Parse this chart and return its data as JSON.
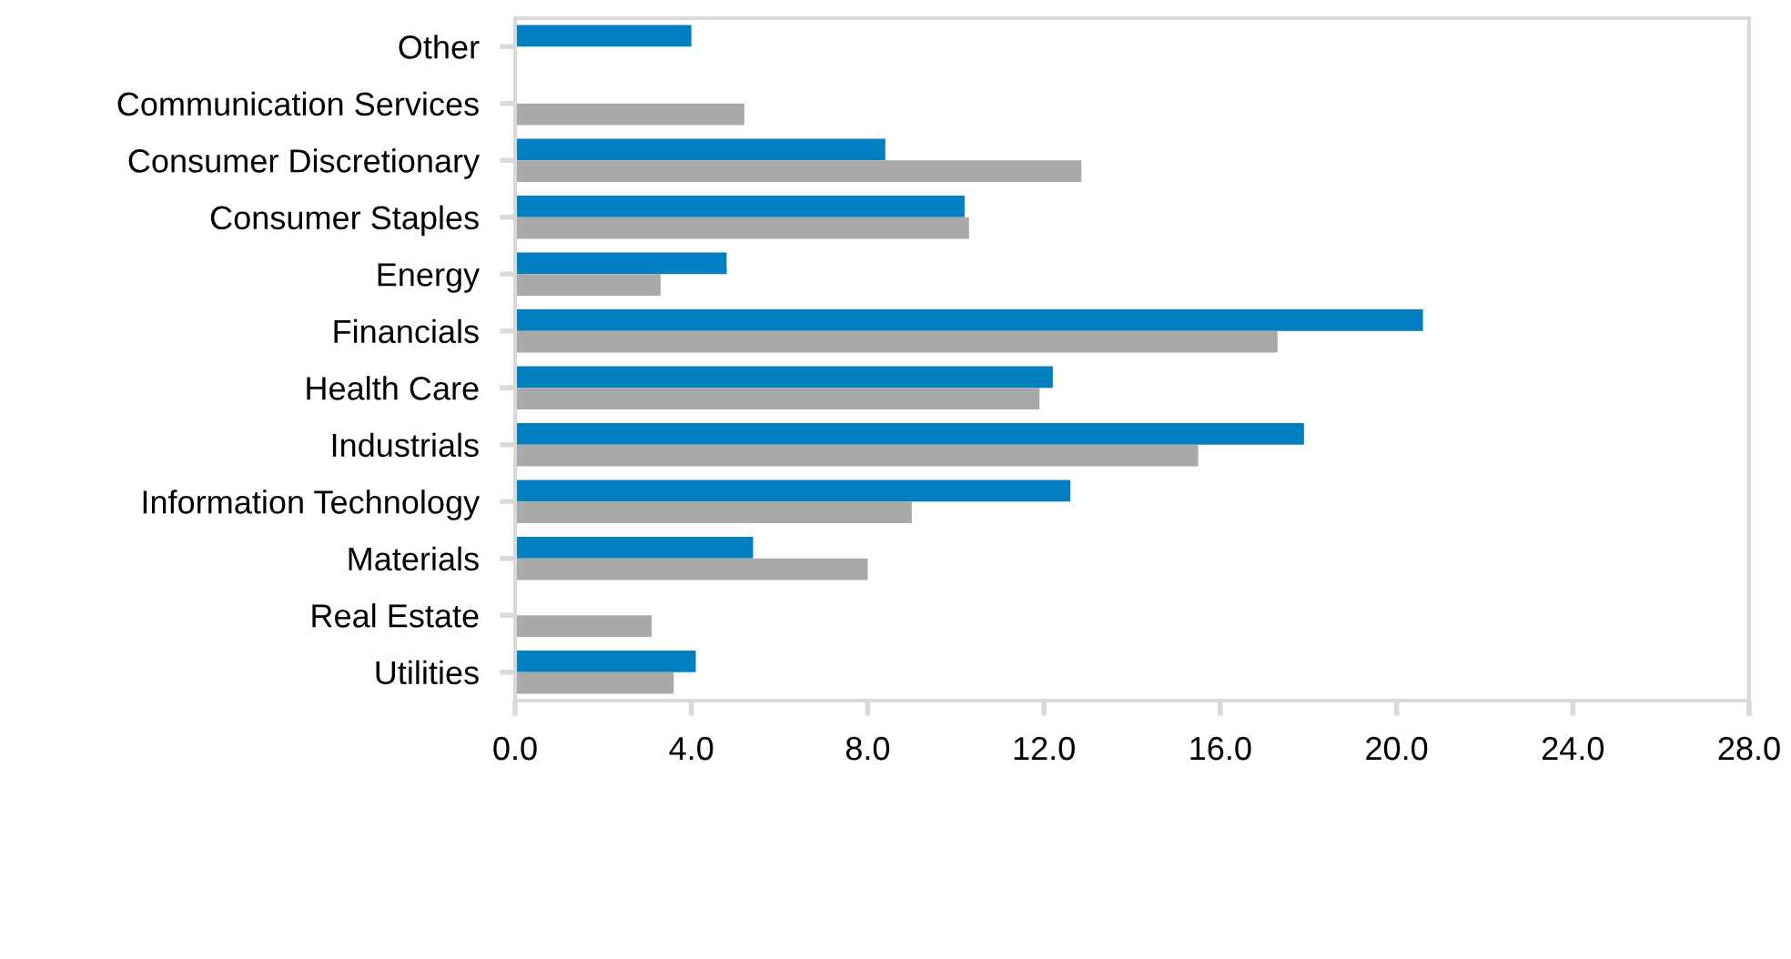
{
  "chart_data": {
    "type": "bar",
    "orientation": "horizontal",
    "categories": [
      "Other",
      "Communication Services",
      "Consumer Discretionary",
      "Consumer Staples",
      "Energy",
      "Financials",
      "Health Care",
      "Industrials",
      "Information Technology",
      "Materials",
      "Real Estate",
      "Utilities"
    ],
    "series": [
      {
        "color": "#0080c0",
        "values": [
          4.0,
          null,
          8.4,
          10.2,
          4.8,
          20.6,
          12.2,
          17.9,
          12.6,
          5.4,
          null,
          4.1
        ]
      },
      {
        "color": "#a9a9a9",
        "values": [
          null,
          5.2,
          12.85,
          10.3,
          3.3,
          17.3,
          11.9,
          15.5,
          9.0,
          8.0,
          3.1,
          3.6
        ]
      }
    ],
    "xlim": [
      0,
      28
    ],
    "xticks": [
      {
        "value": 0,
        "label": "0.0"
      },
      {
        "value": 4,
        "label": "4.0"
      },
      {
        "value": 8,
        "label": "8.0"
      },
      {
        "value": 12,
        "label": "12.0"
      },
      {
        "value": 16,
        "label": "16.0"
      },
      {
        "value": 20,
        "label": "20.0"
      },
      {
        "value": 24,
        "label": "24.0"
      },
      {
        "value": 28,
        "label": "28.0"
      }
    ],
    "grid": false
  }
}
